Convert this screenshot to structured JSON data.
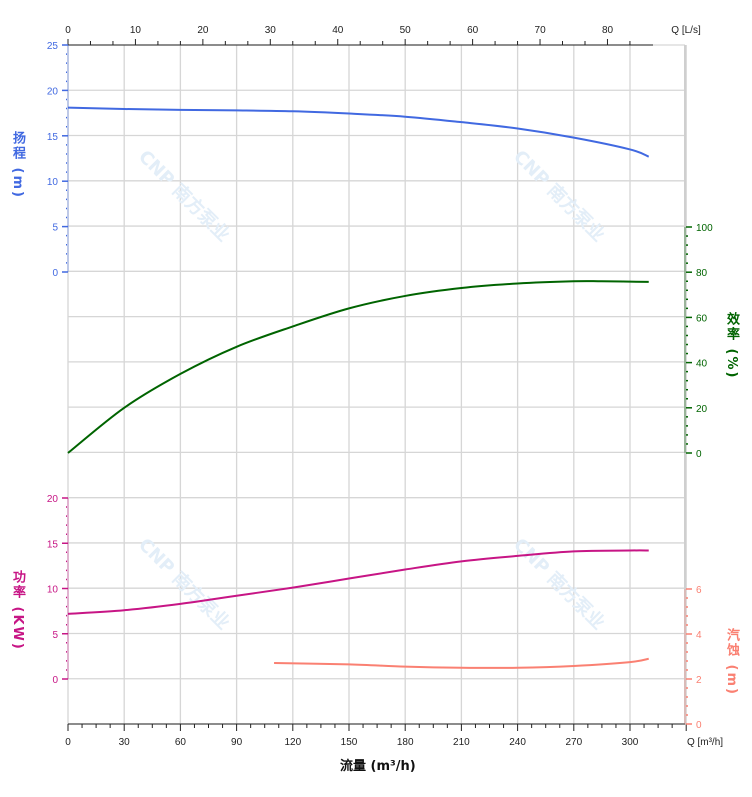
{
  "chart_data": {
    "type": "line",
    "watermark": "CNP 南方泵业",
    "x_bottom": {
      "label": "流量 (m³/h)",
      "unit_label": "Q [m³/h]",
      "range": [
        0,
        330
      ],
      "ticks": [
        0,
        30,
        60,
        90,
        120,
        150,
        180,
        210,
        240,
        270,
        300
      ]
    },
    "x_top": {
      "unit_label": "Q [L/s]",
      "range": [
        0,
        91.67
      ],
      "ticks": [
        0,
        10,
        20,
        30,
        40,
        50,
        60,
        70,
        80
      ]
    },
    "grid": true,
    "axes": {
      "head": {
        "label": "扬程 (m)",
        "color": "#4169e1",
        "ticks": [
          0,
          5,
          10,
          15,
          20,
          25
        ]
      },
      "efficiency": {
        "label": "效率 (%)",
        "color": "#006400",
        "ticks": [
          0,
          20,
          40,
          60,
          80,
          100
        ]
      },
      "power": {
        "label": "功率 (KW)",
        "color": "#c71585",
        "ticks": [
          0,
          5,
          10,
          15,
          20
        ]
      },
      "npsh": {
        "label": "汽蚀 (m)",
        "color": "#fa8072",
        "ticks": [
          0,
          2,
          4,
          6
        ]
      }
    },
    "series": [
      {
        "axis": "head",
        "x": [
          0,
          30,
          60,
          90,
          120,
          150,
          180,
          210,
          240,
          270,
          300,
          310
        ],
        "y": [
          18.1,
          17.95,
          17.85,
          17.8,
          17.7,
          17.45,
          17.1,
          16.5,
          15.8,
          14.8,
          13.5,
          12.7
        ]
      },
      {
        "axis": "efficiency",
        "x": [
          0,
          30,
          60,
          90,
          120,
          150,
          180,
          210,
          240,
          270,
          285,
          310
        ],
        "y": [
          0,
          20,
          35,
          47,
          56,
          64,
          69.5,
          73,
          75,
          76,
          76,
          75.7
        ]
      },
      {
        "axis": "power",
        "x": [
          0,
          30,
          60,
          90,
          120,
          150,
          180,
          210,
          240,
          270,
          300,
          310
        ],
        "y": [
          7.2,
          7.6,
          8.3,
          9.2,
          10.1,
          11.1,
          12.1,
          13.0,
          13.6,
          14.1,
          14.2,
          14.2
        ]
      },
      {
        "axis": "npsh",
        "x": [
          110,
          150,
          180,
          210,
          240,
          270,
          300,
          310
        ],
        "y": [
          2.71,
          2.65,
          2.55,
          2.5,
          2.5,
          2.58,
          2.75,
          2.9
        ]
      }
    ]
  }
}
